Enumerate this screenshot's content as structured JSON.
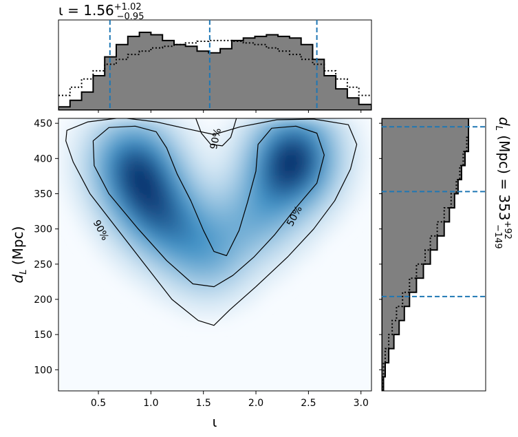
{
  "chart_data": {
    "type": "corner",
    "x": {
      "symbol": "ι",
      "label": "ι",
      "range": [
        0.12,
        3.1
      ],
      "ticks": [
        0.5,
        1.0,
        1.5,
        2.0,
        2.5,
        3.0
      ],
      "tick_labels": [
        "0.5",
        "1.0",
        "1.5",
        "2.0",
        "2.5",
        "3.0"
      ],
      "summary": {
        "label_text": "ι = 1.56",
        "median": 1.56,
        "plus": "+1.02",
        "minus": "−0.95",
        "lower": 0.61,
        "upper": 2.58
      }
    },
    "y": {
      "symbol": "d_L",
      "label_text": "(Mpc)",
      "range": [
        70,
        457
      ],
      "ticks": [
        100,
        150,
        200,
        250,
        300,
        350,
        400,
        450
      ],
      "tick_labels": [
        "100",
        "150",
        "200",
        "250",
        "300",
        "350",
        "400",
        "450"
      ],
      "summary": {
        "label_text": "(Mpc) = 353",
        "median": 353,
        "plus": "+92",
        "minus": "−149",
        "lower": 204,
        "upper": 445
      }
    },
    "density_peaks": [
      {
        "x": 0.82,
        "y": 400,
        "weight": 1.0
      },
      {
        "x": 0.95,
        "y": 348,
        "weight": 0.85
      },
      {
        "x": 1.18,
        "y": 305,
        "weight": 0.7
      },
      {
        "x": 2.32,
        "y": 382,
        "weight": 1.0
      },
      {
        "x": 2.38,
        "y": 420,
        "weight": 0.75
      },
      {
        "x": 2.02,
        "y": 318,
        "weight": 0.55
      },
      {
        "x": 1.55,
        "y": 262,
        "weight": 0.6
      }
    ],
    "contours": [
      {
        "level": "90%",
        "label": "90%",
        "points": [
          [
            0.2,
            440
          ],
          [
            0.4,
            452
          ],
          [
            0.72,
            458
          ],
          [
            1.05,
            452
          ],
          [
            1.35,
            442
          ],
          [
            1.6,
            434
          ],
          [
            1.85,
            445
          ],
          [
            2.2,
            455
          ],
          [
            2.55,
            456
          ],
          [
            2.88,
            448
          ],
          [
            2.96,
            420
          ],
          [
            2.9,
            385
          ],
          [
            2.75,
            340
          ],
          [
            2.55,
            300
          ],
          [
            2.3,
            260
          ],
          [
            2.0,
            218
          ],
          [
            1.75,
            185
          ],
          [
            1.6,
            163
          ],
          [
            1.45,
            170
          ],
          [
            1.2,
            200
          ],
          [
            0.95,
            248
          ],
          [
            0.68,
            300
          ],
          [
            0.42,
            350
          ],
          [
            0.26,
            395
          ],
          [
            0.19,
            425
          ]
        ]
      },
      {
        "level": "50%",
        "label": "50%",
        "points": [
          [
            0.45,
            425
          ],
          [
            0.6,
            444
          ],
          [
            0.85,
            446
          ],
          [
            1.05,
            438
          ],
          [
            1.15,
            415
          ],
          [
            1.25,
            378
          ],
          [
            1.38,
            340
          ],
          [
            1.5,
            298
          ],
          [
            1.6,
            268
          ],
          [
            1.72,
            262
          ],
          [
            1.84,
            298
          ],
          [
            1.92,
            338
          ],
          [
            2.0,
            382
          ],
          [
            2.02,
            420
          ],
          [
            2.15,
            443
          ],
          [
            2.38,
            446
          ],
          [
            2.58,
            436
          ],
          [
            2.65,
            405
          ],
          [
            2.58,
            365
          ],
          [
            2.38,
            330
          ],
          [
            2.18,
            292
          ],
          [
            1.98,
            260
          ],
          [
            1.78,
            234
          ],
          [
            1.6,
            218
          ],
          [
            1.4,
            222
          ],
          [
            1.15,
            255
          ],
          [
            0.88,
            300
          ],
          [
            0.6,
            350
          ],
          [
            0.46,
            390
          ]
        ]
      },
      {
        "level": "90%",
        "label": "90%",
        "points": [
          [
            1.42,
            460
          ],
          [
            1.48,
            436
          ],
          [
            1.57,
            420
          ],
          [
            1.68,
            418
          ],
          [
            1.76,
            430
          ],
          [
            1.82,
            460
          ]
        ]
      }
    ],
    "contour_labels": [
      {
        "text": "90%",
        "x": 0.52,
        "y": 298,
        "angle": 62
      },
      {
        "text": "50%",
        "x": 2.37,
        "y": 318,
        "angle": -62
      },
      {
        "text": "90%",
        "x": 1.62,
        "y": 428,
        "angle": -78
      }
    ],
    "marginal_x": {
      "bins": [
        0.12,
        0.23,
        0.34,
        0.45,
        0.56,
        0.67,
        0.78,
        0.89,
        1.0,
        1.11,
        1.22,
        1.33,
        1.44,
        1.55,
        1.66,
        1.77,
        1.88,
        1.99,
        2.1,
        2.21,
        2.32,
        2.43,
        2.54,
        2.65,
        2.76,
        2.87,
        2.98,
        3.1
      ],
      "hist": [
        0.04,
        0.12,
        0.22,
        0.42,
        0.65,
        0.8,
        0.9,
        0.95,
        0.92,
        0.85,
        0.8,
        0.78,
        0.72,
        0.7,
        0.75,
        0.85,
        0.88,
        0.9,
        0.92,
        0.9,
        0.88,
        0.8,
        0.62,
        0.42,
        0.26,
        0.15,
        0.07
      ],
      "prior": [
        0.18,
        0.28,
        0.38,
        0.48,
        0.56,
        0.62,
        0.68,
        0.72,
        0.76,
        0.78,
        0.8,
        0.82,
        0.84,
        0.85,
        0.85,
        0.84,
        0.82,
        0.8,
        0.76,
        0.72,
        0.68,
        0.62,
        0.56,
        0.48,
        0.38,
        0.28,
        0.18
      ]
    },
    "marginal_y": {
      "bins": [
        70,
        90,
        110,
        130,
        150,
        170,
        190,
        210,
        230,
        250,
        270,
        290,
        310,
        330,
        350,
        370,
        390,
        410,
        430,
        457
      ],
      "hist": [
        0.02,
        0.04,
        0.08,
        0.14,
        0.2,
        0.26,
        0.32,
        0.4,
        0.48,
        0.56,
        0.64,
        0.72,
        0.78,
        0.84,
        0.88,
        0.92,
        0.96,
        1.0,
        1.0
      ],
      "prior": [
        0.01,
        0.02,
        0.04,
        0.08,
        0.12,
        0.17,
        0.24,
        0.32,
        0.4,
        0.5,
        0.56,
        0.64,
        0.72,
        0.8,
        0.86,
        0.9,
        0.94,
        0.98,
        1.0
      ]
    },
    "colors": {
      "hist_fill": "#808080",
      "hist_edge": "#000000",
      "quantile_line": "#1f77b4",
      "density_low": "#f7fbff",
      "density_high": "#08306b",
      "contour": "#000000"
    },
    "grid": false
  }
}
